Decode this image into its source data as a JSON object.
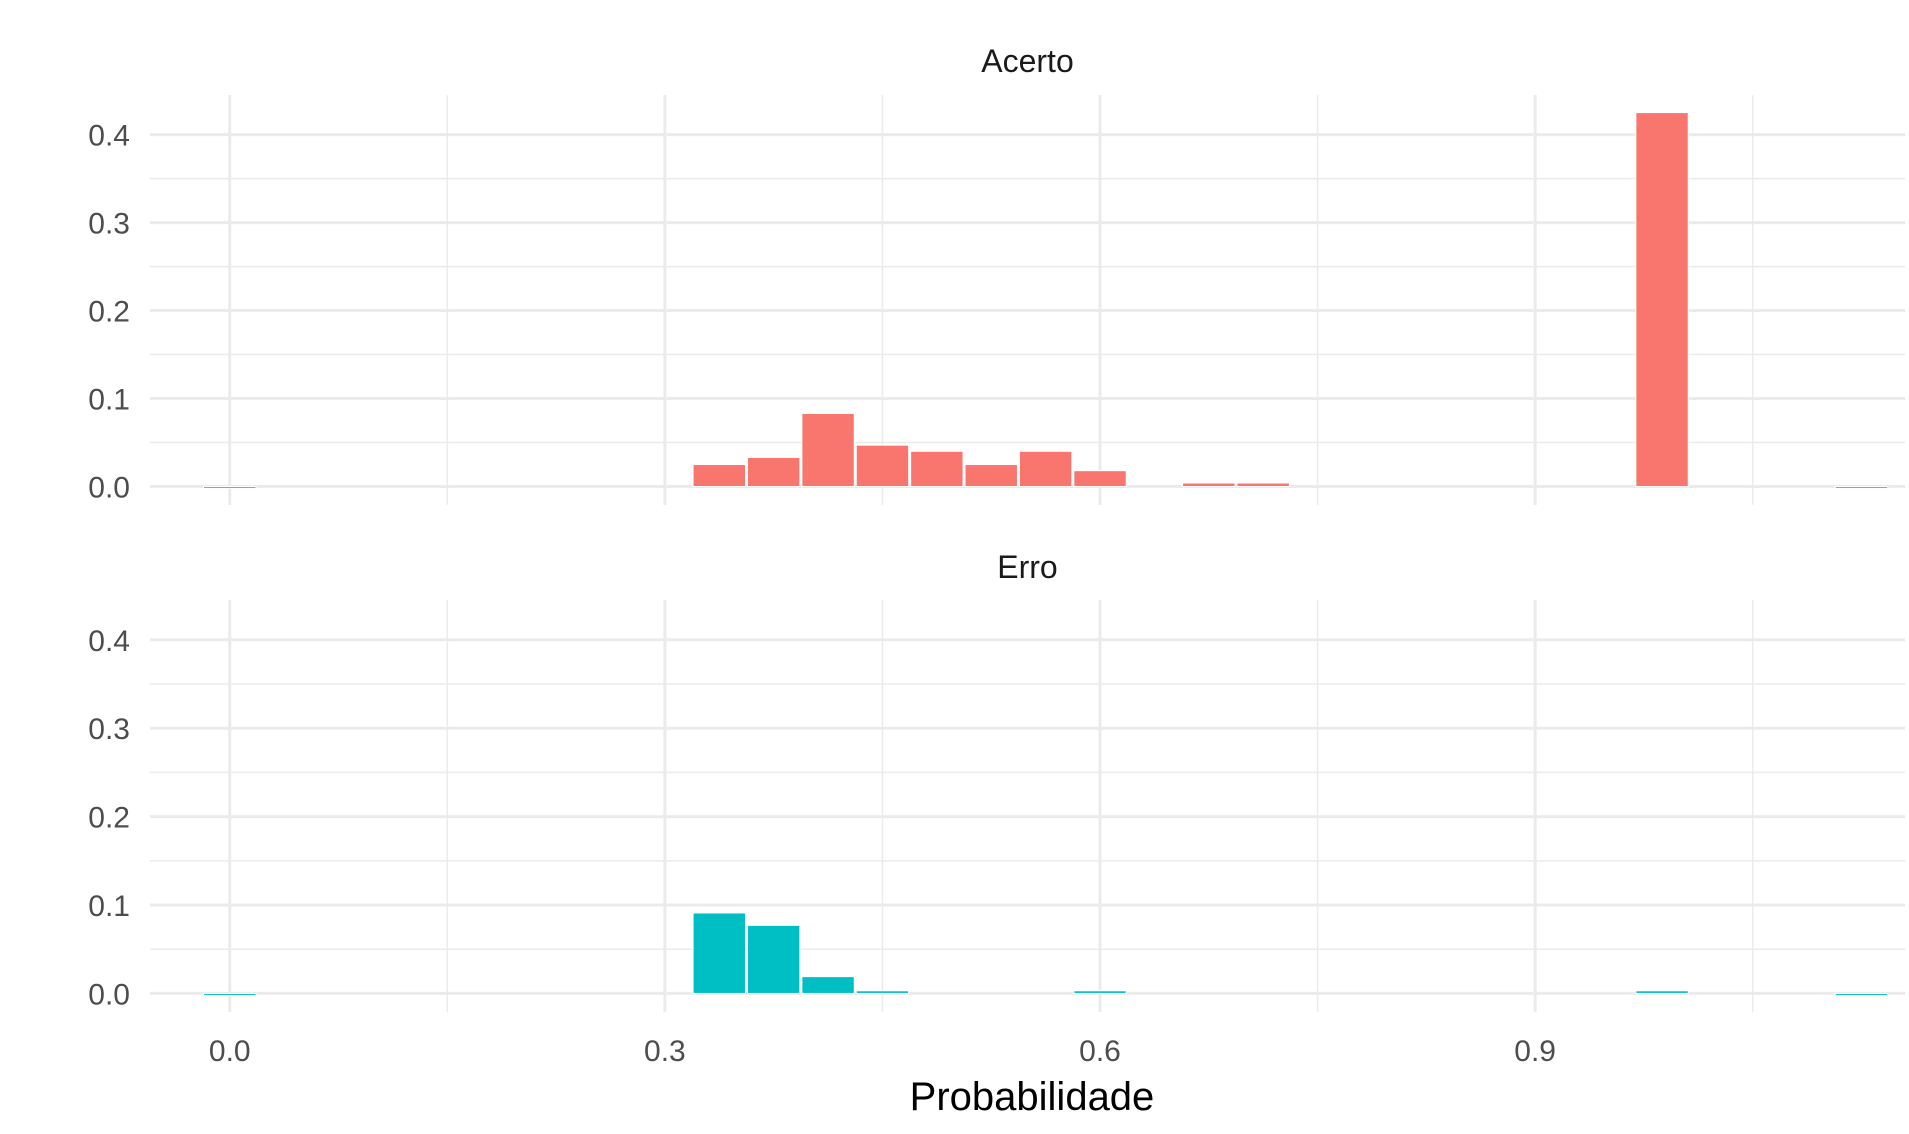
{
  "chart_data": {
    "type": "bar",
    "xlabel": "Probabilidade",
    "ylabel": "",
    "xlim": [
      -0.055,
      1.155
    ],
    "ylim": [
      -0.021,
      0.445
    ],
    "x_ticks": [
      0.0,
      0.3,
      0.6,
      0.9
    ],
    "x_tick_labels": [
      "0.0",
      "0.3",
      "0.6",
      "0.9"
    ],
    "y_ticks": [
      0.0,
      0.1,
      0.2,
      0.3,
      0.4
    ],
    "y_tick_labels": [
      "0.0",
      "0.1",
      "0.2",
      "0.3",
      "0.4"
    ],
    "bin_width": 0.0375,
    "grid": true,
    "panels": [
      {
        "label": "Acerto",
        "color": "#F8766D",
        "bins": [
          {
            "x": 0.0,
            "value": 0.0
          },
          {
            "x": 0.3375,
            "value": 0.025
          },
          {
            "x": 0.375,
            "value": 0.033
          },
          {
            "x": 0.4125,
            "value": 0.083
          },
          {
            "x": 0.45,
            "value": 0.047
          },
          {
            "x": 0.4875,
            "value": 0.04
          },
          {
            "x": 0.525,
            "value": 0.025
          },
          {
            "x": 0.5625,
            "value": 0.04
          },
          {
            "x": 0.6,
            "value": 0.018
          },
          {
            "x": 0.675,
            "value": 0.004
          },
          {
            "x": 0.7125,
            "value": 0.004
          },
          {
            "x": 0.9875,
            "value": 0.425
          },
          {
            "x": 1.125,
            "value": 0.0
          }
        ]
      },
      {
        "label": "Erro",
        "color": "#00BFC4",
        "bins": [
          {
            "x": 0.0,
            "value": 0.0
          },
          {
            "x": 0.3375,
            "value": 0.091
          },
          {
            "x": 0.375,
            "value": 0.077
          },
          {
            "x": 0.4125,
            "value": 0.019
          },
          {
            "x": 0.45,
            "value": 0.003
          },
          {
            "x": 0.6,
            "value": 0.003
          },
          {
            "x": 0.9875,
            "value": 0.003
          },
          {
            "x": 1.125,
            "value": 0.0
          }
        ]
      }
    ]
  }
}
